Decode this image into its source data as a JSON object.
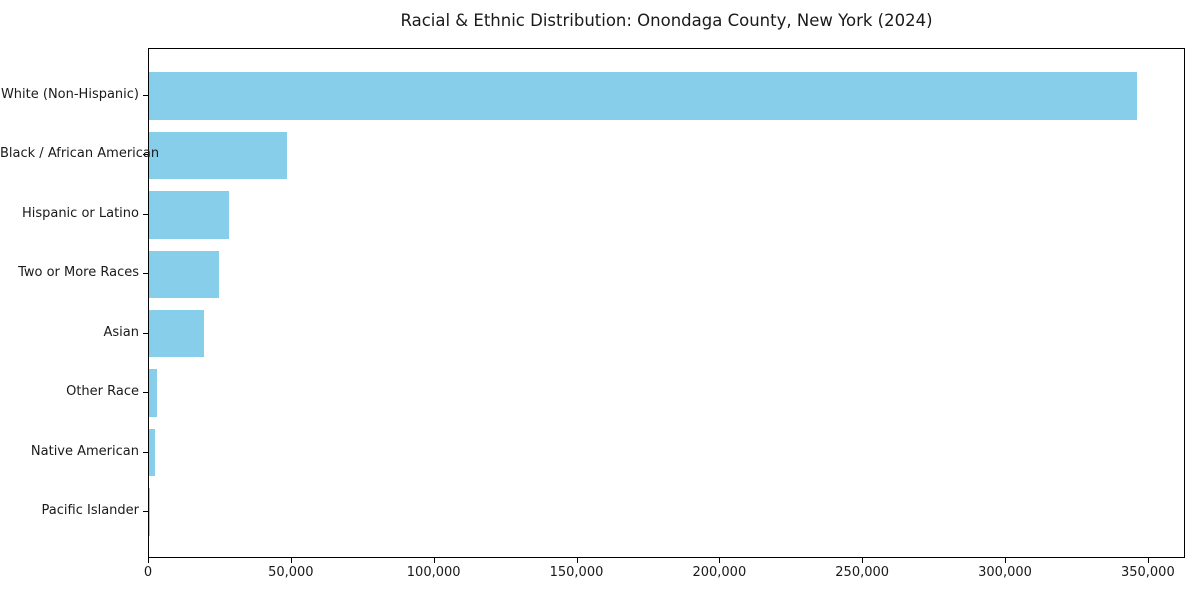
{
  "chart_data": {
    "type": "bar",
    "orientation": "horizontal",
    "title": "Racial & Ethnic Distribution: Onondaga County, New York (2024)",
    "categories": [
      "White (Non-Hispanic)",
      "Black / African American",
      "Hispanic or Latino",
      "Two or More Races",
      "Asian",
      "Other Race",
      "Native American",
      "Pacific Islander"
    ],
    "values": [
      346000,
      48300,
      28000,
      24500,
      19250,
      2800,
      2100,
      300
    ],
    "xlabel": "",
    "ylabel": "",
    "xlim": [
      0,
      363000
    ],
    "x_ticks": [
      0,
      50000,
      100000,
      150000,
      200000,
      250000,
      300000,
      350000
    ],
    "x_tick_labels": [
      "0",
      "50,000",
      "100,000",
      "150,000",
      "200,000",
      "250,000",
      "300,000",
      "350,000"
    ],
    "bar_color": "#87ceeb",
    "axis_color": "#000000",
    "text_color": "#1a1a1a",
    "grid": false,
    "legend": null
  }
}
